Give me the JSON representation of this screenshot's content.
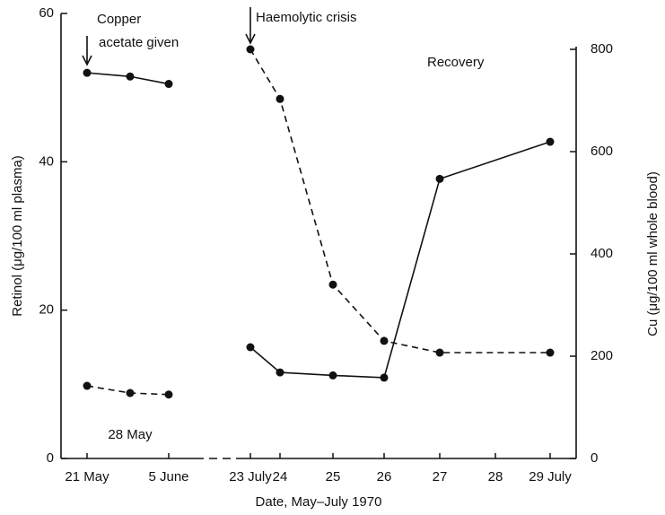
{
  "chart_data": {
    "type": "line",
    "x_label": "Date, May–July 1970",
    "y_label": "Retinol (μg/100 ml plasma)",
    "y2_label": "Cu (μg/100 ml whole blood)",
    "annotations": [
      "Copper",
      "acetate given",
      "Haemolytic crisis",
      "Recovery"
    ],
    "categories": [
      "21 May",
      "28 May",
      "5 June",
      "23 July",
      "24",
      "25",
      "26",
      "27",
      "28",
      "29 July"
    ],
    "ylim": [
      0,
      60
    ],
    "yticks": [
      0,
      20,
      40,
      60
    ],
    "y2lim": [
      0,
      800
    ],
    "y2ticks": [
      0,
      200,
      400,
      600,
      800
    ],
    "series": [
      {
        "x": [
          "21 May",
          "28 May",
          "5 June"
        ],
        "values": [
          52,
          51.5,
          50.5
        ],
        "color": "#111111",
        "dash": false
      },
      {
        "x": [
          "23 July",
          "24",
          "25",
          "26",
          "27",
          "29 July"
        ],
        "values": [
          15,
          11.6,
          11.2,
          10.9,
          37.7,
          42.7
        ],
        "color": "#111111",
        "dash": false
      },
      {
        "x": [
          "21 May",
          "28 May",
          "5 June"
        ],
        "values": [
          142,
          128,
          125
        ],
        "color": "#111111",
        "dash": true,
        "axis": "y2"
      },
      {
        "x": [
          "23 July",
          "24",
          "25",
          "26",
          "27",
          "29 July"
        ],
        "values": [
          800,
          703,
          340,
          230,
          207,
          207
        ],
        "color": "#111111",
        "dash": true,
        "axis": "y2"
      }
    ]
  }
}
